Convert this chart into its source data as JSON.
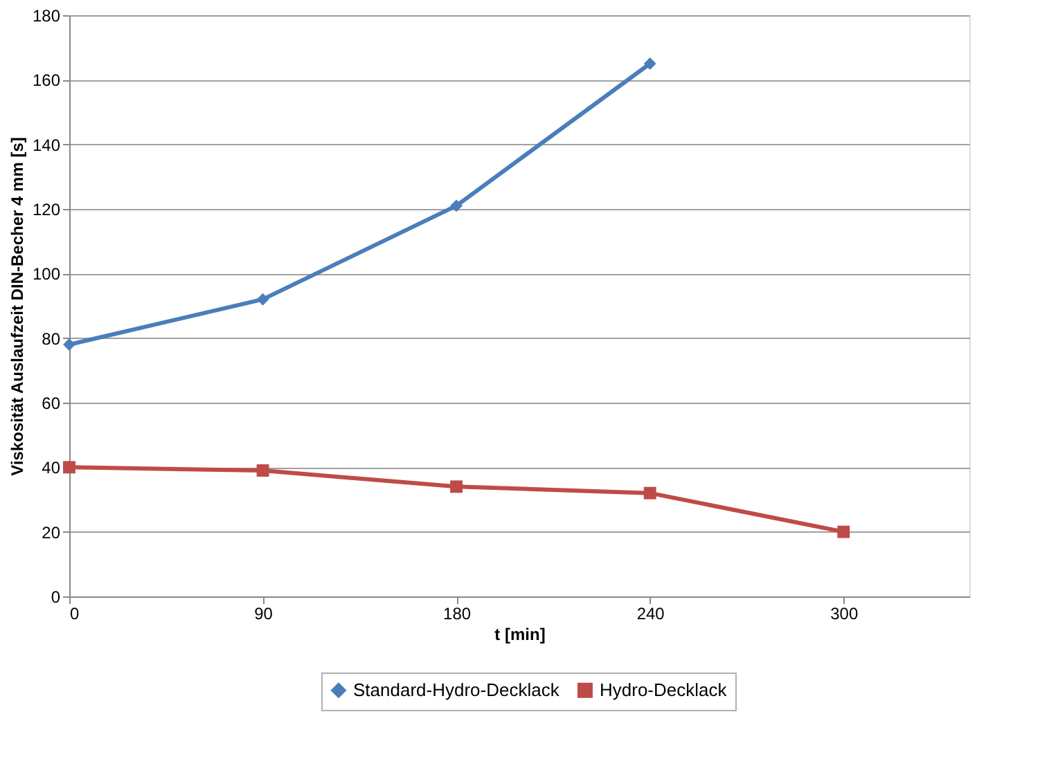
{
  "chart_data": {
    "type": "line",
    "xlabel": "t [min]",
    "ylabel": "Viskosität Auslaufzeit DIN-Becher 4 mm [s]",
    "categories": [
      "0",
      "90",
      "180",
      "240",
      "300"
    ],
    "ylim": [
      0,
      180
    ],
    "yticks": [
      0,
      20,
      40,
      60,
      80,
      100,
      120,
      140,
      160,
      180
    ],
    "grid": "y",
    "legend": "bottom",
    "series": [
      {
        "name": "Standard-Hydro-Decklack",
        "color": "#4a7ebb",
        "marker": "diamond",
        "values": [
          78,
          92,
          121,
          165,
          null
        ]
      },
      {
        "name": "Hydro-Decklack",
        "color": "#be4b48",
        "marker": "square",
        "values": [
          40,
          39,
          34,
          32,
          20
        ]
      }
    ]
  }
}
